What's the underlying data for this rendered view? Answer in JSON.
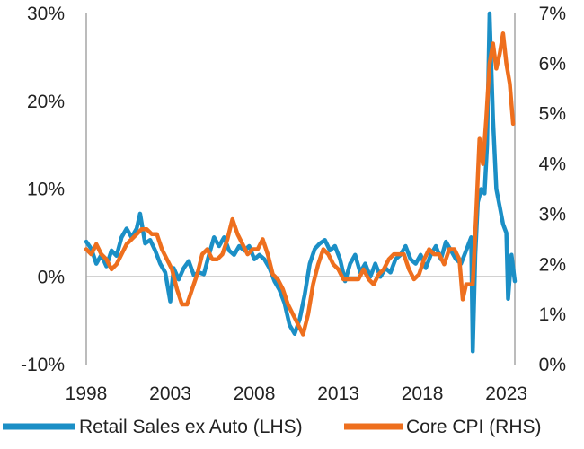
{
  "chart_data": {
    "type": "line",
    "title": "",
    "xlabel": "",
    "x_ticks": [
      "1998",
      "2003",
      "2008",
      "2013",
      "2018",
      "2023"
    ],
    "x_range": [
      1998,
      2023.5
    ],
    "y_left": {
      "range": [
        -10,
        30
      ],
      "ticks": [
        -10,
        0,
        10,
        20,
        30
      ],
      "tick_labels": [
        "-10%",
        "0%",
        "10%",
        "20%",
        "30%"
      ]
    },
    "y_right": {
      "range": [
        0,
        7
      ],
      "ticks": [
        0,
        1,
        2,
        3,
        4,
        5,
        6,
        7
      ],
      "tick_labels": [
        "0%",
        "1%",
        "2%",
        "3%",
        "4%",
        "5%",
        "6%",
        "7%"
      ]
    },
    "grid": false,
    "legend_position": "bottom",
    "colors": {
      "retail": "#1b8fc6",
      "cpi": "#ee6f1e",
      "axis": "#a6a6a6",
      "zero": "#a6a6a6"
    },
    "series": [
      {
        "name": "Retail Sales ex Auto (LHS)",
        "axis": "left",
        "color": "#1b8fc6",
        "points": [
          [
            1998.0,
            4.0
          ],
          [
            1998.3,
            3.2
          ],
          [
            1998.6,
            1.5
          ],
          [
            1998.9,
            2.5
          ],
          [
            1999.2,
            1.2
          ],
          [
            1999.5,
            3.0
          ],
          [
            1999.8,
            2.4
          ],
          [
            2000.1,
            4.5
          ],
          [
            2000.4,
            5.5
          ],
          [
            2000.7,
            4.5
          ],
          [
            2001.0,
            5.5
          ],
          [
            2001.2,
            7.2
          ],
          [
            2001.5,
            3.8
          ],
          [
            2001.8,
            4.2
          ],
          [
            2002.1,
            3.0
          ],
          [
            2002.4,
            1.5
          ],
          [
            2002.7,
            0.5
          ],
          [
            2003.0,
            -2.8
          ],
          [
            2003.2,
            1.0
          ],
          [
            2003.5,
            -0.3
          ],
          [
            2003.8,
            1.0
          ],
          [
            2004.1,
            1.8
          ],
          [
            2004.4,
            0.2
          ],
          [
            2004.7,
            0.5
          ],
          [
            2005.0,
            0.3
          ],
          [
            2005.3,
            2.5
          ],
          [
            2005.6,
            4.5
          ],
          [
            2005.9,
            3.5
          ],
          [
            2006.2,
            4.5
          ],
          [
            2006.5,
            3.0
          ],
          [
            2006.8,
            2.5
          ],
          [
            2007.1,
            3.5
          ],
          [
            2007.4,
            3.0
          ],
          [
            2007.7,
            3.5
          ],
          [
            2008.0,
            2.0
          ],
          [
            2008.3,
            2.5
          ],
          [
            2008.6,
            2.0
          ],
          [
            2008.9,
            1.0
          ],
          [
            2009.2,
            -0.5
          ],
          [
            2009.5,
            -1.5
          ],
          [
            2009.8,
            -3.0
          ],
          [
            2010.1,
            -5.5
          ],
          [
            2010.4,
            -6.5
          ],
          [
            2010.7,
            -4.8
          ],
          [
            2011.0,
            -2.0
          ],
          [
            2011.3,
            1.5
          ],
          [
            2011.6,
            3.2
          ],
          [
            2011.9,
            3.8
          ],
          [
            2012.2,
            4.2
          ],
          [
            2012.5,
            3.0
          ],
          [
            2012.8,
            3.5
          ],
          [
            2013.1,
            2.0
          ],
          [
            2013.4,
            -0.5
          ],
          [
            2013.7,
            1.5
          ],
          [
            2014.0,
            2.5
          ],
          [
            2014.3,
            0.5
          ],
          [
            2014.6,
            1.5
          ],
          [
            2014.9,
            0.0
          ],
          [
            2015.2,
            1.5
          ],
          [
            2015.5,
            0.0
          ],
          [
            2015.8,
            1.0
          ],
          [
            2016.1,
            0.5
          ],
          [
            2016.4,
            2.0
          ],
          [
            2016.7,
            2.5
          ],
          [
            2017.0,
            3.5
          ],
          [
            2017.3,
            2.0
          ],
          [
            2017.6,
            1.5
          ],
          [
            2017.9,
            2.5
          ],
          [
            2018.2,
            1.0
          ],
          [
            2018.5,
            2.5
          ],
          [
            2018.8,
            3.5
          ],
          [
            2019.1,
            2.0
          ],
          [
            2019.4,
            4.0
          ],
          [
            2019.7,
            3.0
          ],
          [
            2020.0,
            2.0
          ],
          [
            2020.3,
            1.5
          ],
          [
            2020.6,
            3.0
          ],
          [
            2020.9,
            4.5
          ],
          [
            2021.0,
            -8.5
          ],
          [
            2021.15,
            2.5
          ],
          [
            2021.3,
            8.5
          ],
          [
            2021.5,
            10.0
          ],
          [
            2021.7,
            9.5
          ],
          [
            2021.85,
            15.0
          ],
          [
            2022.0,
            30.0
          ],
          [
            2022.2,
            18.0
          ],
          [
            2022.4,
            10.0
          ],
          [
            2022.6,
            8.0
          ],
          [
            2022.8,
            6.0
          ],
          [
            2023.0,
            5.0
          ],
          [
            2023.1,
            -2.5
          ],
          [
            2023.3,
            2.5
          ],
          [
            2023.5,
            -0.5
          ]
        ]
      },
      {
        "name": "Core CPI (RHS)",
        "axis": "right",
        "color": "#ee6f1e",
        "points": [
          [
            1998.0,
            2.3
          ],
          [
            1998.3,
            2.2
          ],
          [
            1998.6,
            2.4
          ],
          [
            1998.9,
            2.2
          ],
          [
            1999.2,
            2.1
          ],
          [
            1999.5,
            1.9
          ],
          [
            1999.8,
            2.0
          ],
          [
            2000.1,
            2.2
          ],
          [
            2000.4,
            2.4
          ],
          [
            2000.7,
            2.5
          ],
          [
            2001.0,
            2.6
          ],
          [
            2001.3,
            2.7
          ],
          [
            2001.6,
            2.7
          ],
          [
            2001.9,
            2.6
          ],
          [
            2002.2,
            2.6
          ],
          [
            2002.5,
            2.3
          ],
          [
            2002.8,
            2.1
          ],
          [
            2003.1,
            1.9
          ],
          [
            2003.4,
            1.5
          ],
          [
            2003.7,
            1.2
          ],
          [
            2004.0,
            1.2
          ],
          [
            2004.3,
            1.5
          ],
          [
            2004.6,
            1.8
          ],
          [
            2004.9,
            2.2
          ],
          [
            2005.2,
            2.3
          ],
          [
            2005.5,
            2.1
          ],
          [
            2005.8,
            2.1
          ],
          [
            2006.1,
            2.2
          ],
          [
            2006.4,
            2.5
          ],
          [
            2006.7,
            2.9
          ],
          [
            2007.0,
            2.6
          ],
          [
            2007.3,
            2.4
          ],
          [
            2007.6,
            2.2
          ],
          [
            2007.9,
            2.3
          ],
          [
            2008.2,
            2.3
          ],
          [
            2008.5,
            2.5
          ],
          [
            2008.8,
            2.2
          ],
          [
            2009.1,
            1.8
          ],
          [
            2009.4,
            1.7
          ],
          [
            2009.7,
            1.5
          ],
          [
            2010.0,
            1.2
          ],
          [
            2010.3,
            1.0
          ],
          [
            2010.6,
            0.8
          ],
          [
            2010.9,
            0.6
          ],
          [
            2011.2,
            1.0
          ],
          [
            2011.5,
            1.6
          ],
          [
            2011.8,
            2.0
          ],
          [
            2012.1,
            2.3
          ],
          [
            2012.4,
            2.2
          ],
          [
            2012.7,
            2.0
          ],
          [
            2013.0,
            1.9
          ],
          [
            2013.3,
            1.7
          ],
          [
            2013.6,
            1.7
          ],
          [
            2013.9,
            1.7
          ],
          [
            2014.2,
            1.7
          ],
          [
            2014.5,
            1.9
          ],
          [
            2014.8,
            1.7
          ],
          [
            2015.1,
            1.6
          ],
          [
            2015.4,
            1.8
          ],
          [
            2015.7,
            1.9
          ],
          [
            2016.0,
            2.1
          ],
          [
            2016.3,
            2.2
          ],
          [
            2016.6,
            2.2
          ],
          [
            2016.9,
            2.2
          ],
          [
            2017.2,
            1.9
          ],
          [
            2017.5,
            1.7
          ],
          [
            2017.8,
            1.8
          ],
          [
            2018.1,
            2.1
          ],
          [
            2018.4,
            2.3
          ],
          [
            2018.7,
            2.2
          ],
          [
            2019.0,
            2.2
          ],
          [
            2019.3,
            2.0
          ],
          [
            2019.6,
            2.3
          ],
          [
            2019.9,
            2.3
          ],
          [
            2020.2,
            2.1
          ],
          [
            2020.4,
            1.3
          ],
          [
            2020.6,
            1.6
          ],
          [
            2020.8,
            1.6
          ],
          [
            2021.0,
            1.6
          ],
          [
            2021.2,
            3.0
          ],
          [
            2021.4,
            4.5
          ],
          [
            2021.6,
            4.0
          ],
          [
            2021.8,
            4.9
          ],
          [
            2022.0,
            6.0
          ],
          [
            2022.2,
            6.4
          ],
          [
            2022.4,
            5.9
          ],
          [
            2022.6,
            6.2
          ],
          [
            2022.8,
            6.6
          ],
          [
            2023.0,
            6.0
          ],
          [
            2023.2,
            5.6
          ],
          [
            2023.4,
            4.8
          ]
        ]
      }
    ]
  }
}
